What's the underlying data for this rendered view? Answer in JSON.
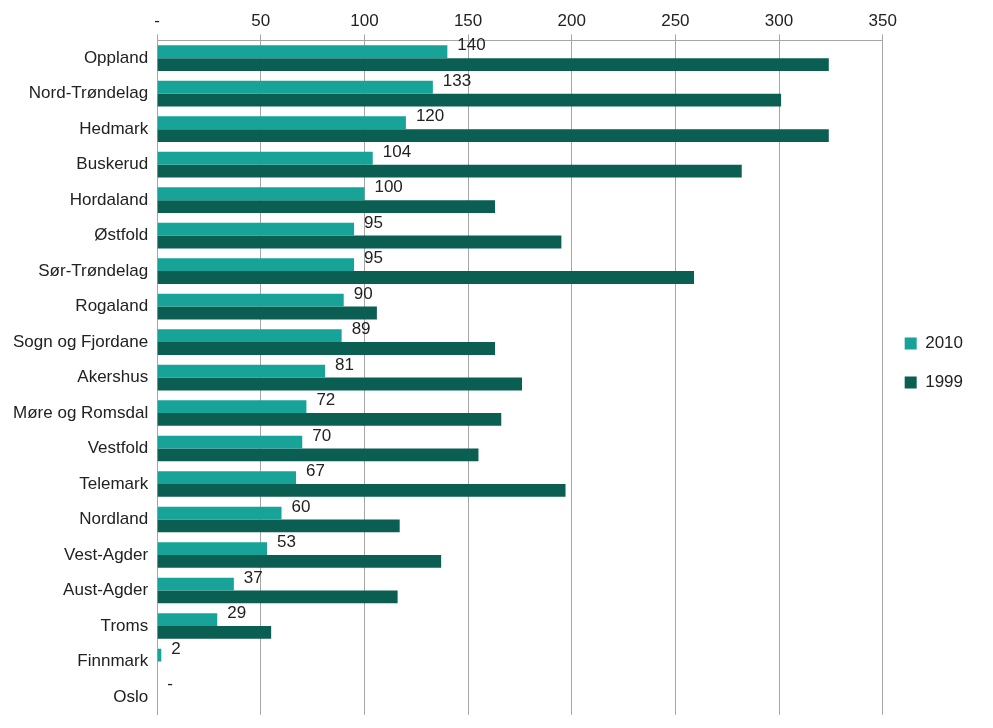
{
  "chart_data": {
    "type": "bar",
    "orientation": "horizontal",
    "categories": [
      "Oppland",
      "Nord-Trøndelag",
      "Hedmark",
      "Buskerud",
      "Hordaland",
      "Østfold",
      "Sør-Trøndelag",
      "Rogaland",
      "Sogn og Fjordane",
      "Akershus",
      "Møre og Romsdal",
      "Vestfold",
      "Telemark",
      "Nordland",
      "Vest-Agder",
      "Aust-Agder",
      "Troms",
      "Finnmark",
      "Oslo"
    ],
    "series": [
      {
        "name": "2010",
        "color": "#17a398",
        "data_labels": true,
        "values": [
          140,
          133,
          120,
          104,
          100,
          95,
          95,
          90,
          89,
          81,
          72,
          70,
          67,
          60,
          53,
          37,
          29,
          2,
          0
        ],
        "value_labels": [
          "140",
          "133",
          "120",
          "104",
          "100",
          "95",
          "95",
          "90",
          "89",
          "81",
          "72",
          "70",
          "67",
          "60",
          "53",
          "37",
          "29",
          "2",
          "-"
        ]
      },
      {
        "name": "1999",
        "color": "#0b5e52",
        "data_labels": false,
        "values": [
          324,
          301,
          324,
          282,
          163,
          195,
          259,
          106,
          163,
          176,
          166,
          155,
          197,
          117,
          137,
          116,
          55,
          0,
          0
        ]
      }
    ],
    "xlim": [
      0,
      350
    ],
    "xticks": [
      {
        "value": 0,
        "label": "-"
      },
      50,
      100,
      150,
      200,
      250,
      300,
      350
    ],
    "grid": "x",
    "legend": "right"
  }
}
